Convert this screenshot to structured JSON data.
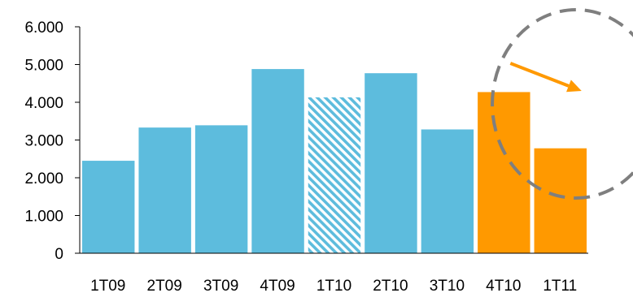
{
  "chart_data": {
    "type": "bar",
    "title": "",
    "xlabel": "",
    "ylabel": "",
    "ylim": [
      0,
      6000
    ],
    "yticks": [
      0,
      1000,
      2000,
      3000,
      4000,
      5000,
      6000
    ],
    "ytick_labels": [
      "0",
      "1.000",
      "2.000",
      "3.000",
      "4.000",
      "5.000",
      "6.000"
    ],
    "categories": [
      "1T09",
      "2T09",
      "3T09",
      "4T09",
      "1T10",
      "2T10",
      "3T10",
      "4T10",
      "1T11"
    ],
    "values": [
      2450,
      3330,
      3390,
      4880,
      4130,
      4770,
      3280,
      4270,
      2780
    ],
    "bar_styles": [
      "solid",
      "solid",
      "solid",
      "solid",
      "hatched",
      "solid",
      "solid",
      "highlight",
      "highlight"
    ],
    "grid": false,
    "legend": "none",
    "colors": {
      "base": "#5DBCDD",
      "highlight": "#FF9900",
      "hatch_background": "#FFFFFF",
      "annotation_circle": "#7F7F7F",
      "annotation_arrow": "#FF9900",
      "axis": "#000000"
    },
    "annotations": [
      {
        "kind": "dashed-ellipse",
        "around": [
          "4T10",
          "1T11"
        ]
      },
      {
        "kind": "arrow",
        "direction": "down-right",
        "from": "4T10",
        "to": "1T11"
      }
    ]
  }
}
